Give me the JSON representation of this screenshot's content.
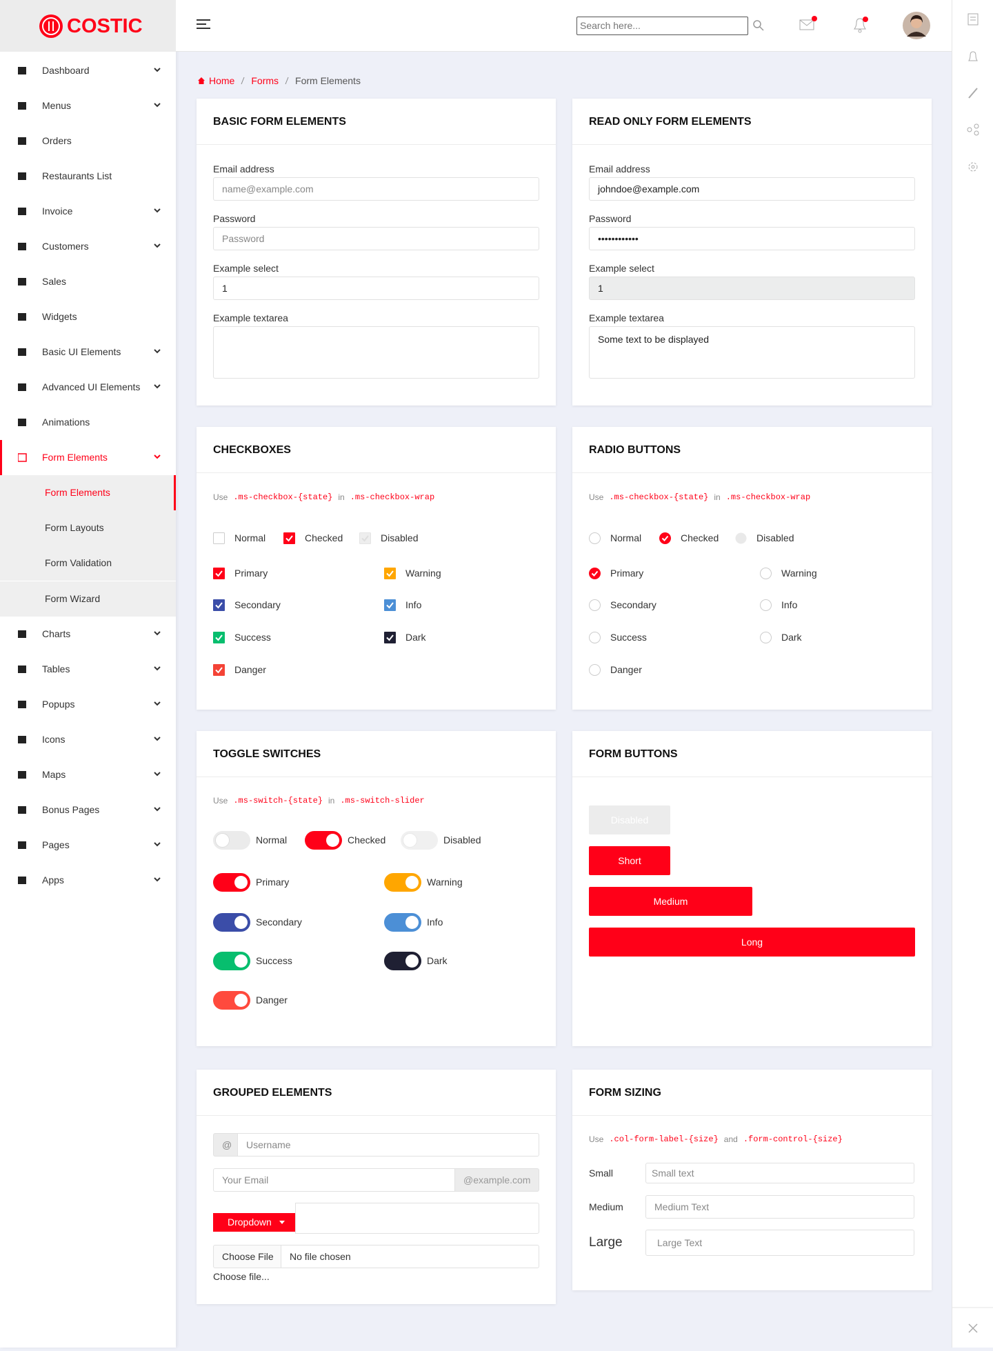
{
  "brand": "COSTIC",
  "sidebar": {
    "items": [
      {
        "label": "Dashboard",
        "expandable": true
      },
      {
        "label": "Menus",
        "expandable": true
      },
      {
        "label": "Orders"
      },
      {
        "label": "Restaurants List"
      },
      {
        "label": "Invoice",
        "expandable": true
      },
      {
        "label": "Customers",
        "expandable": true
      },
      {
        "label": "Sales"
      },
      {
        "label": "Widgets"
      },
      {
        "label": "Basic UI Elements",
        "expandable": true
      },
      {
        "label": "Advanced UI Elements",
        "expandable": true
      },
      {
        "label": "Animations"
      },
      {
        "label": "Form Elements",
        "expandable": true,
        "active": true,
        "submenu": [
          {
            "label": "Form Elements",
            "active": true
          },
          {
            "label": "Form Layouts"
          },
          {
            "label": "Form Validation"
          },
          {
            "label": "Form Wizard"
          }
        ]
      },
      {
        "label": "Charts",
        "expandable": true
      },
      {
        "label": "Tables",
        "expandable": true
      },
      {
        "label": "Popups",
        "expandable": true
      },
      {
        "label": "Icons",
        "expandable": true
      },
      {
        "label": "Maps",
        "expandable": true
      },
      {
        "label": "Bonus Pages",
        "expandable": true
      },
      {
        "label": "Pages",
        "expandable": true
      },
      {
        "label": "Apps",
        "expandable": true
      }
    ]
  },
  "header": {
    "search_placeholder": "Search here..."
  },
  "breadcrumb": [
    "Home",
    "Forms",
    "Form Elements"
  ],
  "basic_form": {
    "title": "BASIC FORM ELEMENTS",
    "fields": [
      {
        "label": "Email address",
        "placeholder": "name@example.com"
      },
      {
        "label": "Password",
        "placeholder": "Password"
      },
      {
        "label": "Example select",
        "value": "1"
      },
      {
        "label": "Example textarea"
      }
    ]
  },
  "readonly_form": {
    "title": "READ ONLY FORM ELEMENTS",
    "fields": [
      {
        "label": "Email address",
        "value": "johndoe@example.com"
      },
      {
        "label": "Password",
        "value": "••••••••••••"
      },
      {
        "label": "Example select",
        "value": "1"
      },
      {
        "label": "Example textarea",
        "value": "Some text to be displayed"
      }
    ]
  },
  "checkboxes": {
    "title": "CHECKBOXES",
    "hint": [
      "Use",
      ".ms-checkbox-{state}",
      "in",
      ".ms-checkbox-wrap"
    ],
    "states": [
      {
        "label": "Normal"
      },
      {
        "label": "Checked",
        "checked": true
      },
      {
        "label": "Disabled",
        "disabled": true
      }
    ],
    "variants": [
      {
        "label": "Primary",
        "color": "#ff0018",
        "checked": true
      },
      {
        "label": "Warning",
        "color": "#ffa600",
        "checked": true
      },
      {
        "label": "Secondary",
        "color": "#3b4da8",
        "checked": true
      },
      {
        "label": "Info",
        "color": "#4c8fd6",
        "checked": true
      },
      {
        "label": "Success",
        "color": "#07be6e",
        "checked": true
      },
      {
        "label": "Dark",
        "color": "#1f2033",
        "checked": true
      },
      {
        "label": "Danger",
        "color": "#f44336",
        "checked": true
      }
    ]
  },
  "radio_buttons": {
    "title": "RADIO BUTTONS",
    "hint": [
      "Use",
      ".ms-checkbox-{state}",
      "in",
      ".ms-checkbox-wrap"
    ],
    "states": [
      {
        "label": "Normal"
      },
      {
        "label": "Checked",
        "checked": true
      },
      {
        "label": "Disabled",
        "disabled": true
      }
    ],
    "variants": [
      {
        "label": "Primary",
        "color": "#ff0018",
        "checked": true
      },
      {
        "label": "Warning",
        "color": "#ffa600"
      },
      {
        "label": "Secondary",
        "color": "#3b4da8"
      },
      {
        "label": "Info",
        "color": "#4c8fd6"
      },
      {
        "label": "Success",
        "color": "#07be6e"
      },
      {
        "label": "Dark",
        "color": "#1f2033"
      },
      {
        "label": "Danger",
        "color": "#f44336"
      }
    ]
  },
  "toggle_switches": {
    "title": "TOGGLE SWITCHES",
    "hint": [
      "Use",
      ".ms-switch-{state}",
      "in",
      ".ms-switch-slider"
    ],
    "states": [
      {
        "label": "Normal"
      },
      {
        "label": "Checked",
        "checked": true
      },
      {
        "label": "Disabled",
        "disabled": true
      }
    ],
    "variants": [
      {
        "label": "Primary",
        "color": "#ff0018",
        "checked": true
      },
      {
        "label": "Warning",
        "color": "#ffa600",
        "checked": true
      },
      {
        "label": "Secondary",
        "color": "#3b4da8",
        "checked": true
      },
      {
        "label": "Info",
        "color": "#4c8fd6",
        "checked": true
      },
      {
        "label": "Success",
        "color": "#07be6e",
        "checked": true
      },
      {
        "label": "Dark",
        "color": "#1f2033",
        "checked": true
      },
      {
        "label": "Danger",
        "color": "#ff4a3d",
        "checked": true
      }
    ]
  },
  "form_buttons": {
    "title": "FORM BUTTONS",
    "buttons": [
      {
        "label": "Disabled",
        "disabled": true
      },
      {
        "label": "Short"
      },
      {
        "label": "Medium"
      },
      {
        "label": "Long"
      }
    ]
  },
  "grouped_elements": {
    "title": "GROUPED ELEMENTS",
    "addon": "@",
    "username_placeholder": "Username",
    "email_placeholder": "Your Email",
    "email_suffix": "@example.com",
    "dropdown": "Dropdown",
    "file_button": "Choose File",
    "file_status": "No file chosen",
    "file_label": "Choose file..."
  },
  "form_sizing": {
    "title": "FORM SIZING",
    "hint": [
      "Use",
      ".col-form-label-{size}",
      "and",
      ".form-control-{size}"
    ],
    "rows": [
      {
        "label": "Small",
        "placeholder": "Small text"
      },
      {
        "label": "Medium",
        "placeholder": "Medium Text"
      },
      {
        "label": "Large",
        "placeholder": "Large Text"
      }
    ]
  }
}
